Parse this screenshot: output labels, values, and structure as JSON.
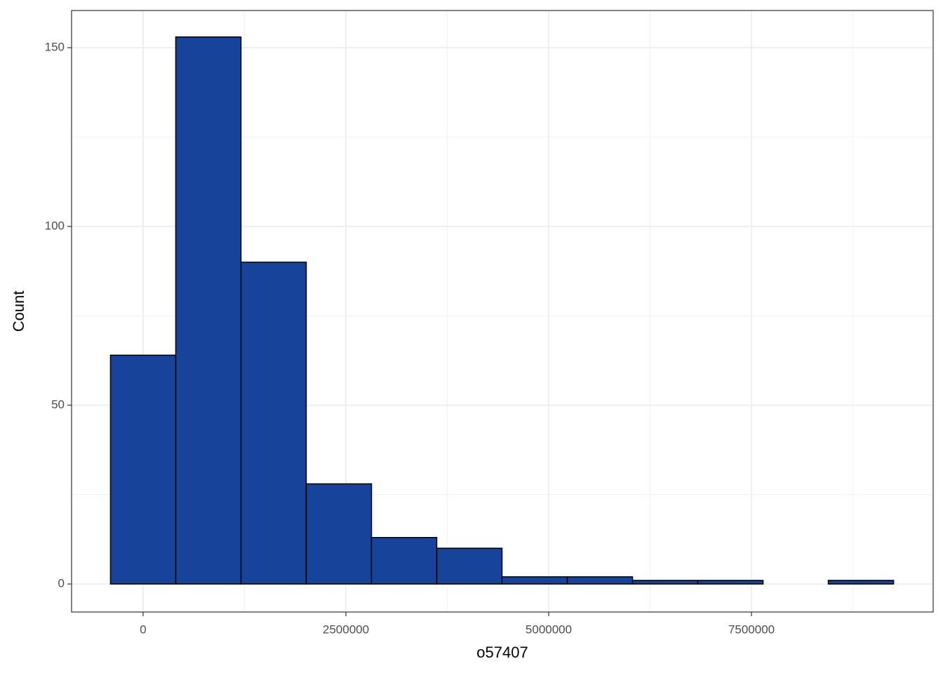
{
  "chart_data": {
    "type": "histogram",
    "x_label": "o57407",
    "y_label": "Count",
    "bins": [
      -402250,
      402250,
      1206750,
      2011250,
      2815750,
      3620250,
      4424750,
      5229250,
      6033750,
      6838250,
      7642750,
      8447250,
      9251750
    ],
    "counts": [
      64,
      153,
      90,
      28,
      13,
      10,
      2,
      2,
      1,
      1,
      0,
      1
    ],
    "color": "#18439a",
    "edge_color": "#000000",
    "xlim": [
      -882000,
      9740000
    ],
    "ylim": [
      -7.84,
      160.4
    ],
    "xticks": [
      0,
      2500000,
      5000000,
      7500000
    ],
    "yticks": [
      0,
      50,
      100,
      150
    ],
    "x_minor_ticks": [
      1250000,
      3750000,
      6250000,
      8750000
    ],
    "y_minor_ticks": [
      25,
      75,
      125
    ],
    "grid": true
  }
}
